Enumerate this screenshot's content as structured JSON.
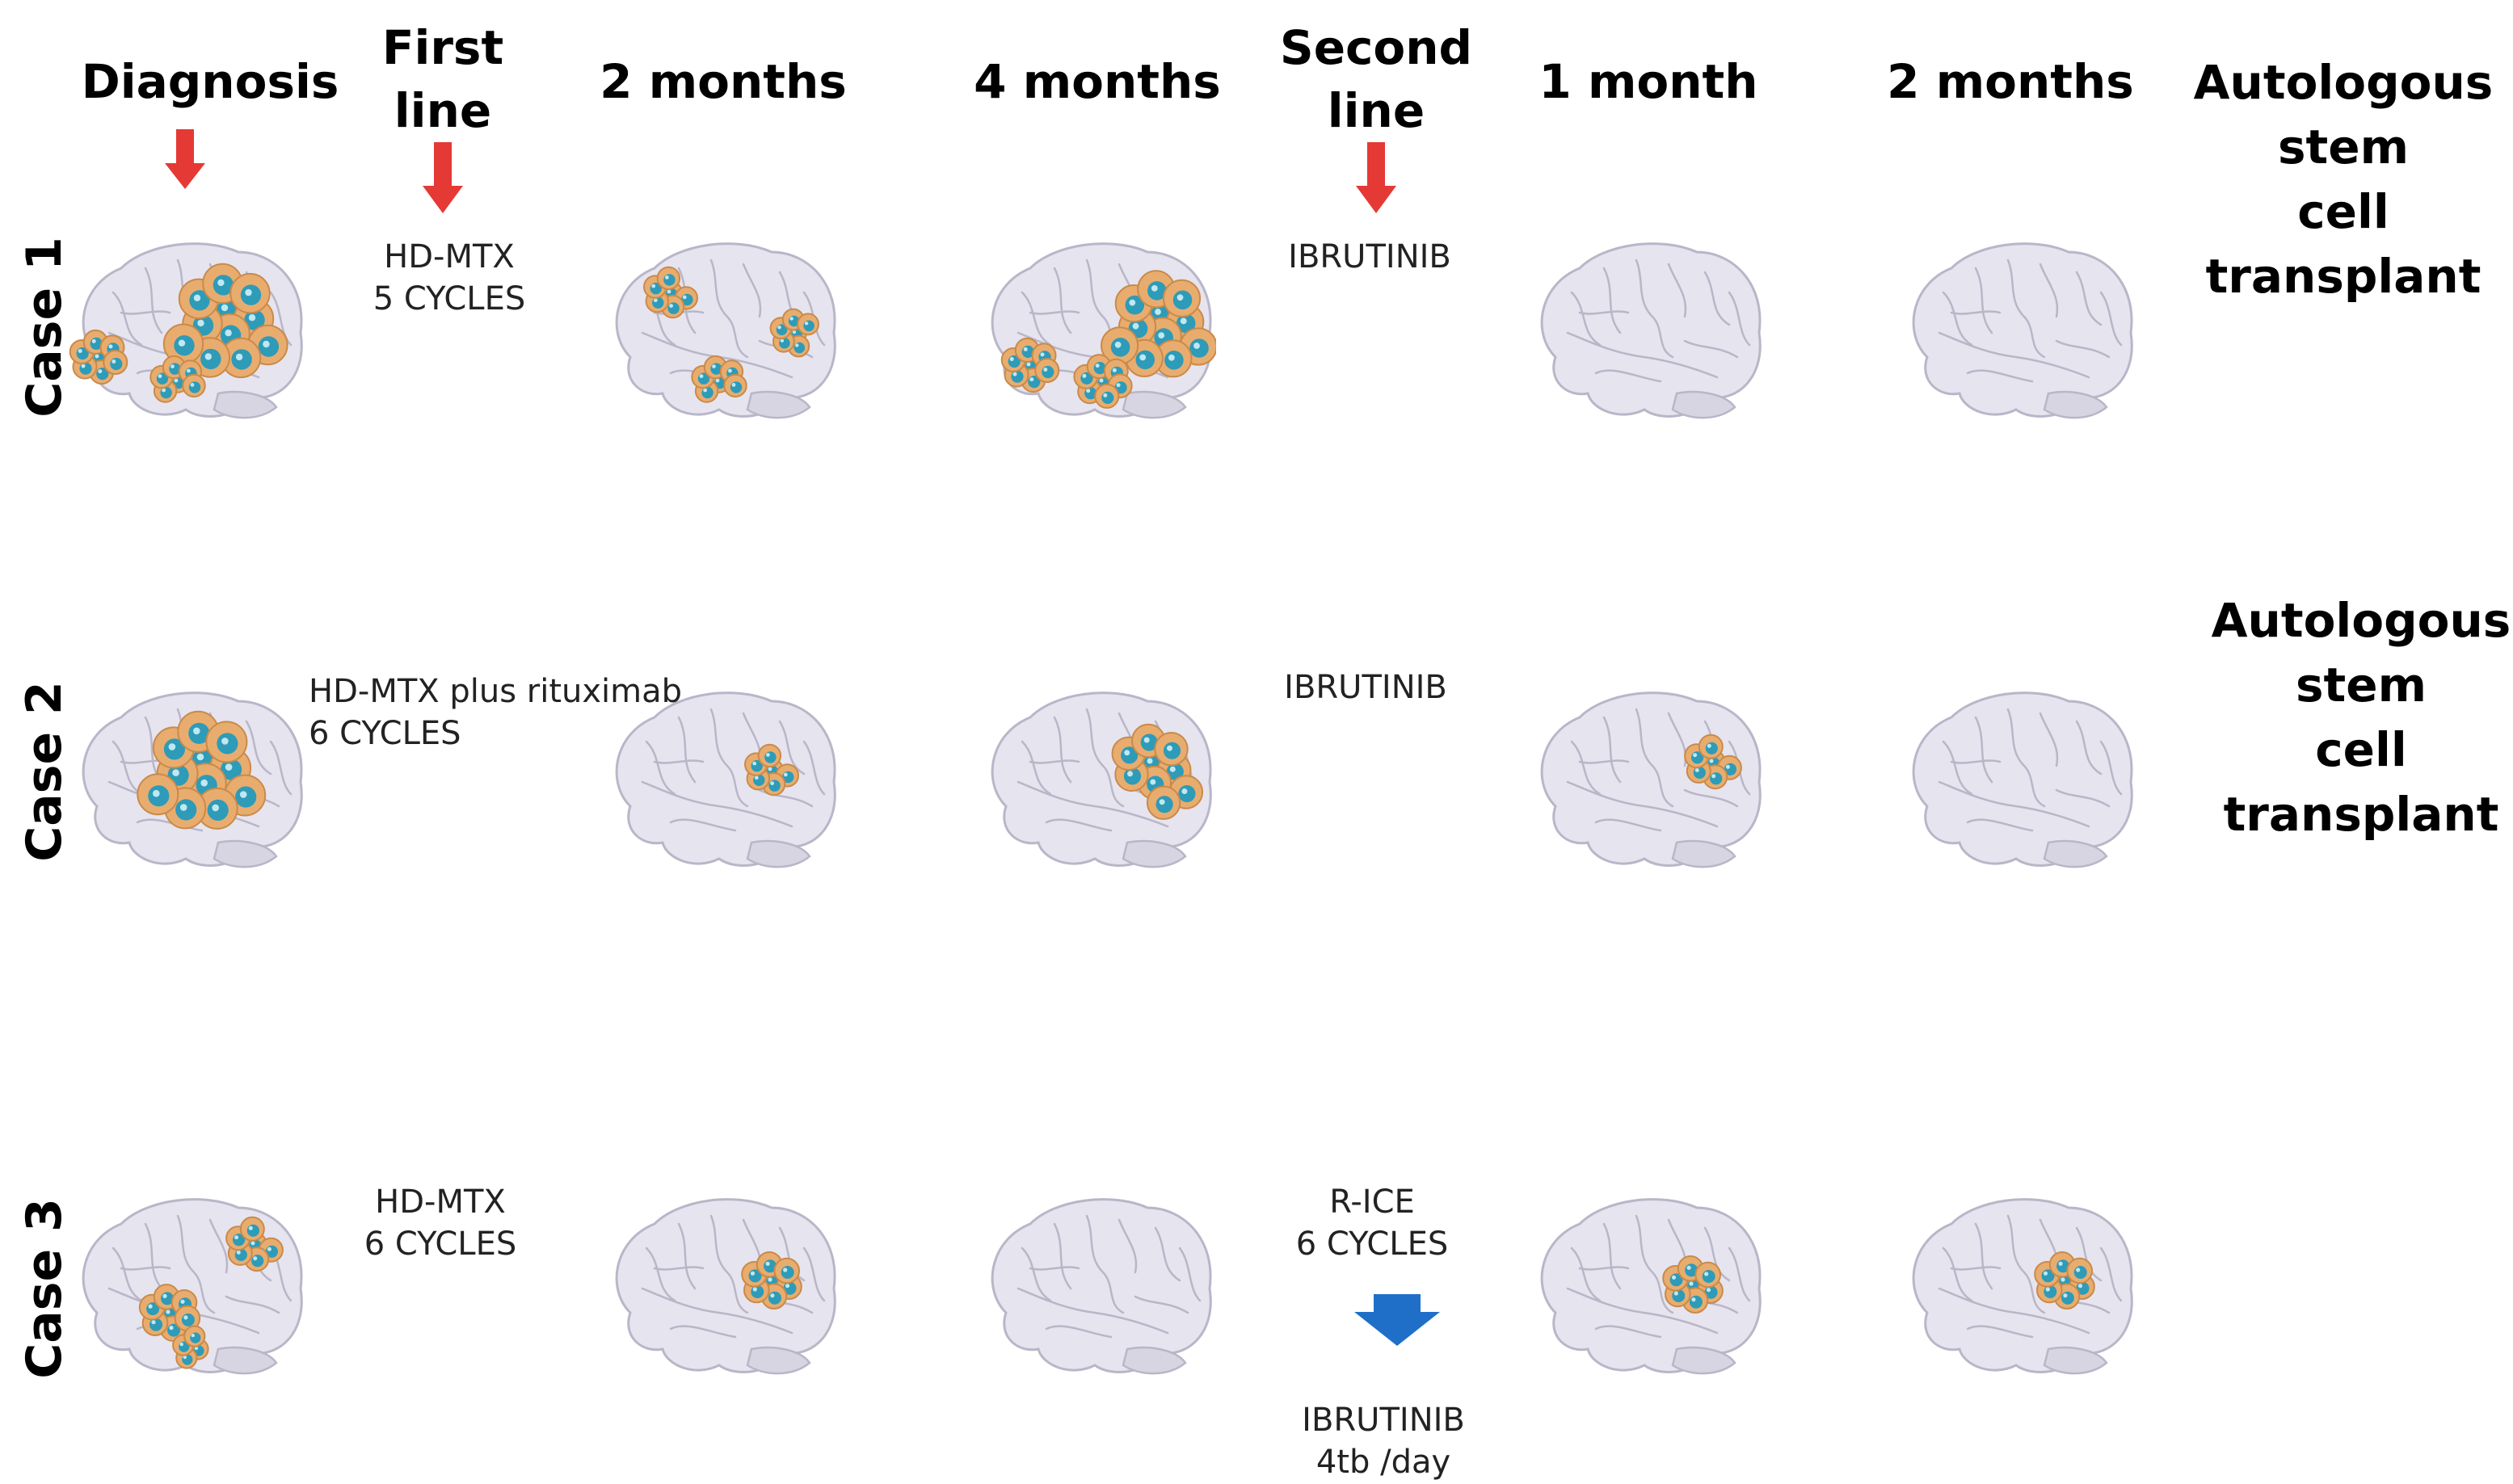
{
  "headers": {
    "diagnosis": "Diagnosis",
    "first_line": [
      "First",
      "line"
    ],
    "two_months_a": "2 months",
    "four_months": "4 months",
    "second_line": [
      "Second",
      "line"
    ],
    "one_month": "1 month",
    "two_months_b": "2 months"
  },
  "cases": [
    {
      "label": "Case 1",
      "first_line_tx": [
        "HD-MTX",
        "5 CYCLES"
      ],
      "second_line_tx": [
        "IBRUTINIB"
      ],
      "outcome": [
        "Autologous",
        "stem",
        "cell",
        "transplant"
      ],
      "tumor_burden": [
        "large",
        "medium",
        "large",
        "none",
        "none"
      ]
    },
    {
      "label": "Case 2",
      "first_line_tx": [
        "HD-MTX plus rituximab",
        "6 CYCLES"
      ],
      "second_line_tx": [
        "IBRUTINIB"
      ],
      "outcome": [
        "Autologous",
        "stem",
        "cell",
        "transplant"
      ],
      "tumor_burden": [
        "large",
        "small",
        "medium",
        "small",
        "none"
      ]
    },
    {
      "label": "Case 3",
      "first_line_tx": [
        "HD-MTX",
        "6 CYCLES"
      ],
      "second_line_tx": [
        "R-ICE",
        "6 CYCLES"
      ],
      "third_tx": [
        "IBRUTINIB",
        "4tb /day"
      ],
      "tumor_burden": [
        "medium",
        "small",
        "none",
        "small",
        "small"
      ]
    }
  ],
  "colors": {
    "brain_fill": "#e6e4ef",
    "brain_stroke": "#b9b6c8",
    "cell_fill": "#e8ad6e",
    "cell_nucleus": "#2e9bb8",
    "red_arrow": "#e53935",
    "blue_arrow": "#1f6fc9"
  }
}
